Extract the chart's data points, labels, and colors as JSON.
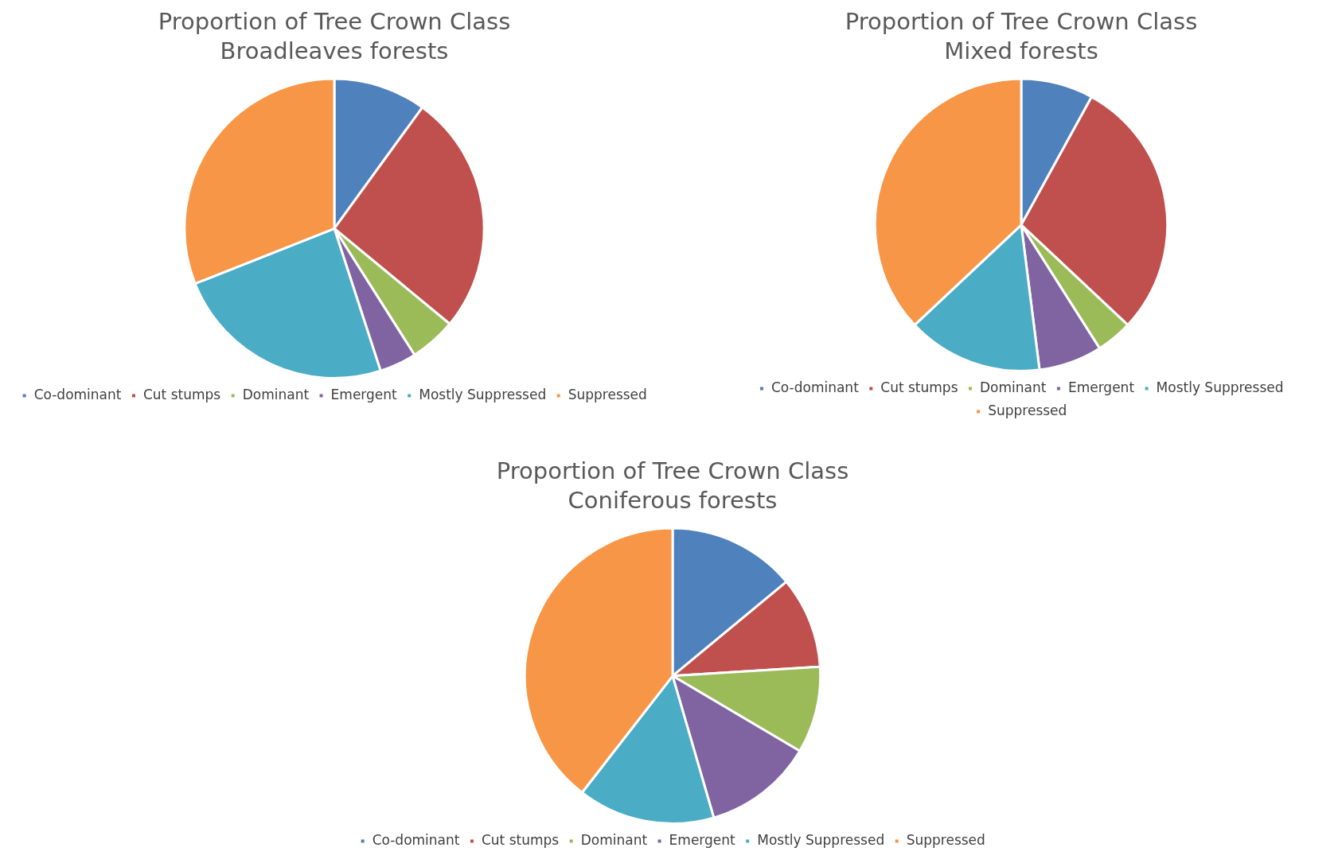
{
  "chart_data": [
    {
      "type": "pie",
      "title": "Proportion of Tree Crown Class",
      "subtitle": "Broadleaves forests",
      "categories": [
        "Co-dominant",
        "Cut stumps",
        "Dominant",
        "Emergent",
        "Mostly Suppressed",
        "Suppressed"
      ],
      "values": [
        10,
        26,
        5,
        4,
        24,
        31
      ],
      "colors": [
        "#4f81bd",
        "#c0504d",
        "#9bbb59",
        "#8064a2",
        "#4bacc6",
        "#f79646"
      ],
      "legend": "bottom"
    },
    {
      "type": "pie",
      "title": "Proportion of Tree Crown Class",
      "subtitle": "Mixed forests",
      "categories": [
        "Co-dominant",
        "Cut stumps",
        "Dominant",
        "Emergent",
        "Mostly Suppressed",
        "Suppressed"
      ],
      "values": [
        8,
        29,
        4,
        7,
        15,
        37
      ],
      "colors": [
        "#4f81bd",
        "#c0504d",
        "#9bbb59",
        "#8064a2",
        "#4bacc6",
        "#f79646"
      ],
      "legend": "bottom"
    },
    {
      "type": "pie",
      "title": "Proportion of Tree Crown Class",
      "subtitle": "Coniferous forests",
      "categories": [
        "Co-dominant",
        "Cut stumps",
        "Dominant",
        "Emergent",
        "Mostly Suppressed",
        "Suppressed"
      ],
      "values": [
        14,
        10,
        9.5,
        12,
        15,
        39.5
      ],
      "colors": [
        "#4f81bd",
        "#c0504d",
        "#9bbb59",
        "#8064a2",
        "#4bacc6",
        "#f79646"
      ],
      "legend": "bottom"
    }
  ]
}
